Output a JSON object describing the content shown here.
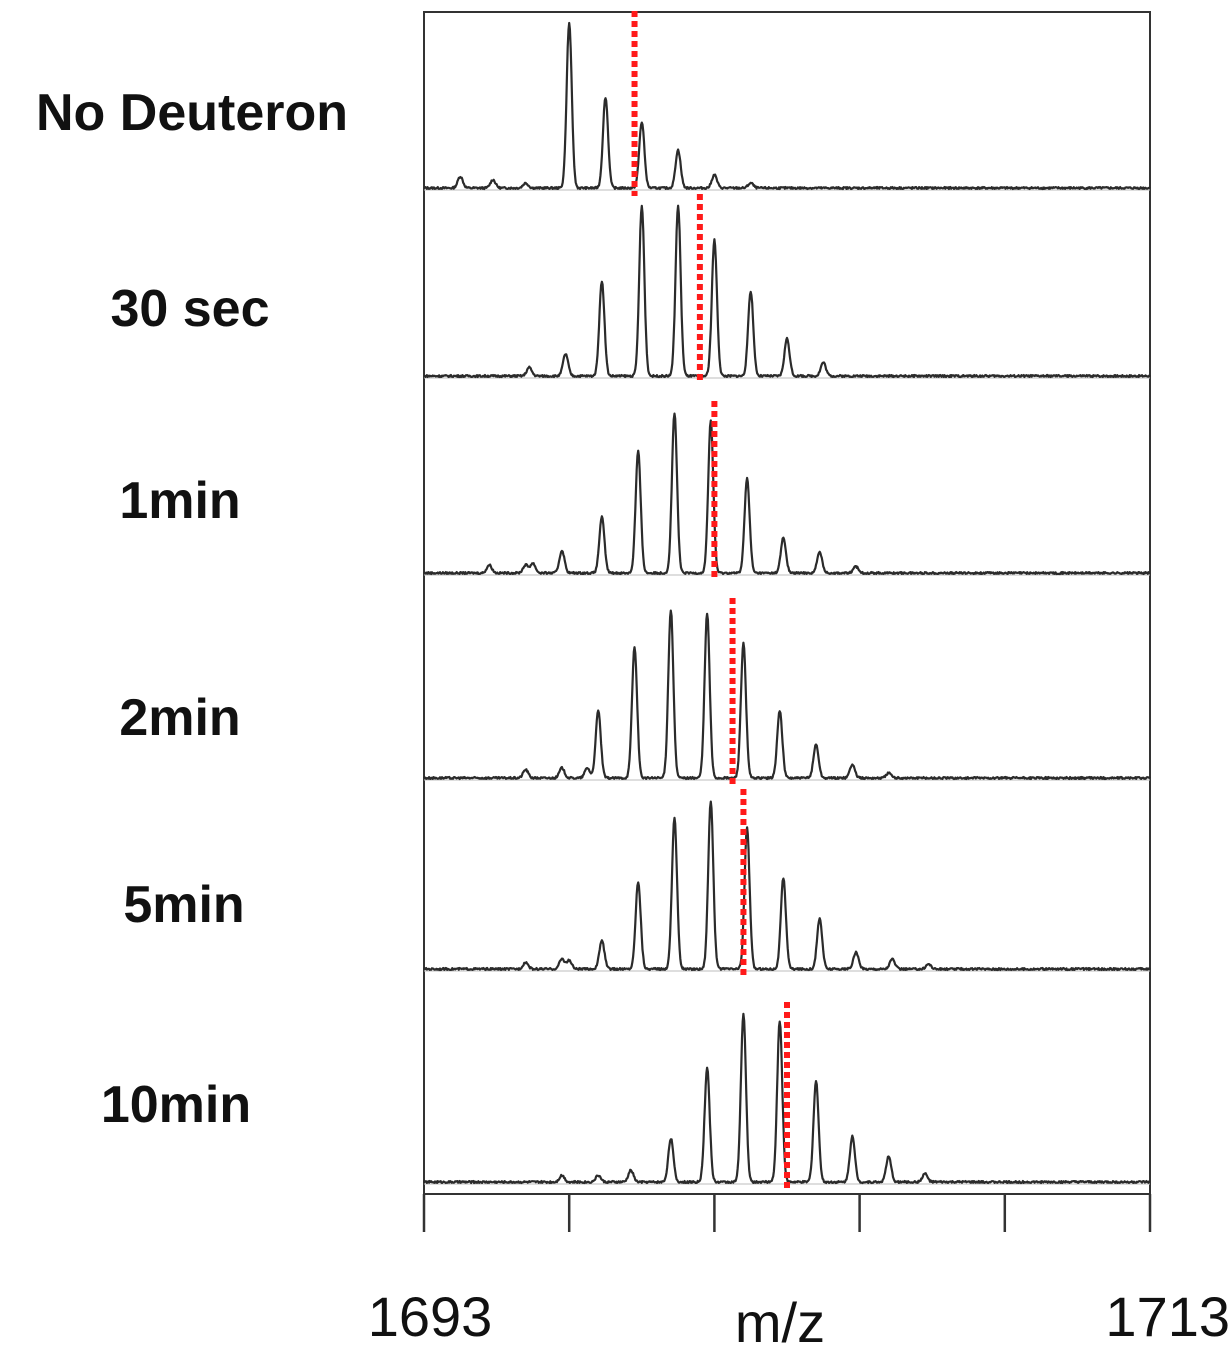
{
  "chart_data": {
    "type": "line",
    "xlabel": "m/z",
    "xlim": [
      1693,
      1713
    ],
    "x_tick_labels": [
      "1693",
      "1713"
    ],
    "x_ticks": [
      1693,
      1697,
      1701,
      1705,
      1709,
      1713
    ],
    "grid": false,
    "colors": {
      "trace": "#2b2b2b",
      "centroid": "#ff1a1a",
      "frame": "#333333"
    },
    "panels": [
      {
        "label": "No Deuteron",
        "centroid_mz": 1698.8,
        "peaks": [
          [
            1694.0,
            0.07
          ],
          [
            1694.9,
            0.05
          ],
          [
            1695.8,
            0.03
          ],
          [
            1697.0,
            1.0
          ],
          [
            1698.0,
            0.55
          ],
          [
            1699.0,
            0.4
          ],
          [
            1700.0,
            0.23
          ],
          [
            1701.0,
            0.08
          ],
          [
            1702.0,
            0.03
          ]
        ]
      },
      {
        "label": "30 sec",
        "centroid_mz": 1700.6,
        "peaks": [
          [
            1695.9,
            0.05
          ],
          [
            1696.9,
            0.13
          ],
          [
            1697.9,
            0.56
          ],
          [
            1699.0,
            1.0
          ],
          [
            1700.0,
            1.0
          ],
          [
            1701.0,
            0.8
          ],
          [
            1702.0,
            0.5
          ],
          [
            1703.0,
            0.22
          ],
          [
            1704.0,
            0.08
          ]
        ]
      },
      {
        "label": "1min",
        "centroid_mz": 1701.0,
        "peaks": [
          [
            1694.8,
            0.05
          ],
          [
            1695.8,
            0.05
          ],
          [
            1696.0,
            0.06
          ],
          [
            1696.8,
            0.14
          ],
          [
            1697.9,
            0.35
          ],
          [
            1698.9,
            0.76
          ],
          [
            1699.9,
            1.0
          ],
          [
            1700.9,
            0.95
          ],
          [
            1701.9,
            0.59
          ],
          [
            1702.9,
            0.22
          ],
          [
            1703.9,
            0.13
          ],
          [
            1704.9,
            0.04
          ]
        ]
      },
      {
        "label": "2min",
        "centroid_mz": 1701.5,
        "peaks": [
          [
            1695.8,
            0.05
          ],
          [
            1696.8,
            0.06
          ],
          [
            1697.5,
            0.06
          ],
          [
            1697.8,
            0.4
          ],
          [
            1698.8,
            0.78
          ],
          [
            1699.8,
            1.0
          ],
          [
            1700.8,
            0.98
          ],
          [
            1701.8,
            0.8
          ],
          [
            1702.8,
            0.4
          ],
          [
            1703.8,
            0.2
          ],
          [
            1704.8,
            0.08
          ],
          [
            1705.8,
            0.03
          ]
        ]
      },
      {
        "label": "5min",
        "centroid_mz": 1701.8,
        "peaks": [
          [
            1695.8,
            0.04
          ],
          [
            1696.8,
            0.06
          ],
          [
            1697.0,
            0.05
          ],
          [
            1697.9,
            0.17
          ],
          [
            1698.9,
            0.52
          ],
          [
            1699.9,
            0.9
          ],
          [
            1700.9,
            1.0
          ],
          [
            1701.9,
            0.84
          ],
          [
            1702.9,
            0.54
          ],
          [
            1703.9,
            0.3
          ],
          [
            1704.9,
            0.1
          ],
          [
            1705.9,
            0.06
          ],
          [
            1706.9,
            0.03
          ]
        ]
      },
      {
        "label": "10min",
        "centroid_mz": 1703.0,
        "peaks": [
          [
            1696.8,
            0.04
          ],
          [
            1697.8,
            0.04
          ],
          [
            1698.7,
            0.07
          ],
          [
            1699.8,
            0.26
          ],
          [
            1700.8,
            0.68
          ],
          [
            1701.8,
            1.0
          ],
          [
            1702.8,
            0.96
          ],
          [
            1703.8,
            0.6
          ],
          [
            1704.8,
            0.27
          ],
          [
            1705.8,
            0.15
          ],
          [
            1706.8,
            0.05
          ]
        ]
      }
    ]
  }
}
